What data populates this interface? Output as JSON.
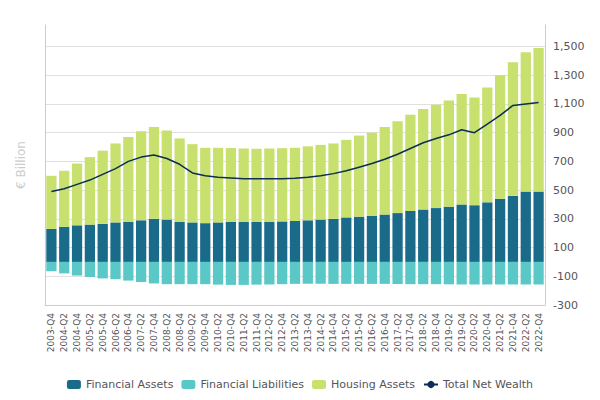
{
  "chart_data": {
    "type": "bar",
    "ylabel": "€ Billion",
    "categories": [
      "2003-Q4",
      "2004-Q2",
      "2004-Q4",
      "2005-Q2",
      "2005-Q4",
      "2006-Q2",
      "2006-Q4",
      "2007-Q2",
      "2007-Q4",
      "2008-Q2",
      "2008-Q4",
      "2009-Q2",
      "2009-Q4",
      "2010-Q2",
      "2010-Q4",
      "2011-Q2",
      "2011-Q4",
      "2012-Q2",
      "2012-Q4",
      "2013-Q2",
      "2013-Q4",
      "2014-Q2",
      "2014-Q4",
      "2015-Q2",
      "2015-Q4",
      "2016-Q2",
      "2016-Q4",
      "2017-Q2",
      "2017-Q4",
      "2018-Q2",
      "2018-Q4",
      "2019-Q2",
      "2019-Q4",
      "2020-Q2",
      "2020-Q4",
      "2021-Q2",
      "2021-Q4",
      "2022-Q2",
      "2022-Q4"
    ],
    "series": [
      {
        "name": "Financial Assets",
        "type": "bar",
        "color": "#1a6b8a",
        "values": [
          230,
          245,
          255,
          260,
          265,
          275,
          280,
          290,
          300,
          295,
          280,
          275,
          270,
          275,
          278,
          280,
          278,
          280,
          282,
          285,
          290,
          295,
          300,
          310,
          315,
          320,
          330,
          340,
          355,
          365,
          375,
          385,
          400,
          395,
          415,
          440,
          460,
          490,
          490
        ]
      },
      {
        "name": "Financial Liabilities",
        "type": "bar",
        "color": "#5bc8c8",
        "values": [
          -65,
          -80,
          -95,
          -105,
          -115,
          -120,
          -130,
          -140,
          -150,
          -155,
          -155,
          -155,
          -155,
          -158,
          -160,
          -160,
          -158,
          -157,
          -155,
          -153,
          -152,
          -152,
          -153,
          -153,
          -153,
          -153,
          -153,
          -154,
          -155,
          -155,
          -155,
          -156,
          -157,
          -157,
          -157,
          -157,
          -157,
          -157,
          -157
        ]
      },
      {
        "name": "Housing Assets",
        "type": "bar",
        "color": "#c8e06e",
        "values": [
          370,
          390,
          430,
          470,
          510,
          550,
          590,
          620,
          640,
          620,
          580,
          545,
          525,
          520,
          515,
          510,
          510,
          510,
          510,
          510,
          515,
          520,
          525,
          540,
          565,
          580,
          610,
          640,
          670,
          700,
          720,
          740,
          770,
          750,
          800,
          860,
          930,
          970,
          1000
        ]
      },
      {
        "name": "Total Net Wealth",
        "type": "line",
        "color": "#0d2d52",
        "values": [
          490,
          510,
          540,
          570,
          610,
          650,
          700,
          730,
          745,
          720,
          680,
          620,
          600,
          590,
          585,
          580,
          580,
          580,
          580,
          582,
          590,
          600,
          615,
          635,
          660,
          685,
          715,
          750,
          790,
          830,
          860,
          885,
          920,
          900,
          960,
          1020,
          1090,
          1100,
          1110
        ]
      }
    ],
    "stacked": true,
    "ylim": [
      -300,
      1650
    ],
    "yticks": [
      -300,
      -100,
      100,
      300,
      500,
      700,
      900,
      {
        "value": 1100,
        "label": "1,100"
      },
      {
        "value": 1300,
        "label": "1,300"
      },
      {
        "value": 1500,
        "label": "1,500"
      }
    ],
    "grid": true,
    "legend": "bottom"
  }
}
